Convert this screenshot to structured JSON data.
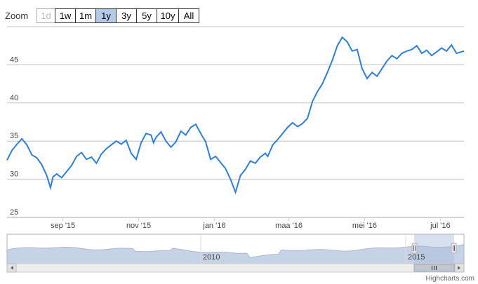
{
  "zoom": {
    "label": "Zoom",
    "buttons": [
      {
        "label": "1d",
        "state": "disabled"
      },
      {
        "label": "1w",
        "state": "normal"
      },
      {
        "label": "1m",
        "state": "normal"
      },
      {
        "label": "1y",
        "state": "active"
      },
      {
        "label": "3y",
        "state": "normal"
      },
      {
        "label": "5y",
        "state": "normal"
      },
      {
        "label": "10y",
        "state": "normal"
      },
      {
        "label": "All",
        "state": "normal"
      }
    ]
  },
  "credits": "Highcharts.com",
  "colors": {
    "line": "#2f7ed8",
    "navigator_fill": "#c6d3e6",
    "selection": "#a7bad9",
    "grid": "#c0c0c0"
  },
  "chart_data": {
    "type": "line",
    "title": "",
    "xlabel": "",
    "ylabel": "",
    "ylim": [
      25,
      50
    ],
    "yticks": [
      25,
      30,
      35,
      40,
      45
    ],
    "xticks": [
      {
        "date": "2015-09-01",
        "label": "sep '15"
      },
      {
        "date": "2015-11-01",
        "label": "nov '15"
      },
      {
        "date": "2016-01-01",
        "label": "jan '16"
      },
      {
        "date": "2016-03-01",
        "label": "maa '16"
      },
      {
        "date": "2016-05-01",
        "label": "mei '16"
      },
      {
        "date": "2016-07-01",
        "label": "jul '16"
      }
    ],
    "xrange": [
      "2015-07-18",
      "2016-07-20"
    ],
    "grid": true,
    "series": [
      {
        "x": [
          "2015-07-18",
          "2015-07-22",
          "2015-07-26",
          "2015-07-30",
          "2015-08-03",
          "2015-08-07",
          "2015-08-11",
          "2015-08-15",
          "2015-08-19",
          "2015-08-22",
          "2015-08-24",
          "2015-08-27",
          "2015-08-31",
          "2015-09-04",
          "2015-09-08",
          "2015-09-12",
          "2015-09-16",
          "2015-09-20",
          "2015-09-24",
          "2015-09-28",
          "2015-10-02",
          "2015-10-06",
          "2015-10-10",
          "2015-10-14",
          "2015-10-18",
          "2015-10-22",
          "2015-10-26",
          "2015-10-30",
          "2015-11-03",
          "2015-11-07",
          "2015-11-11",
          "2015-11-13",
          "2015-11-15",
          "2015-11-19",
          "2015-11-23",
          "2015-11-27",
          "2015-12-01",
          "2015-12-05",
          "2015-12-09",
          "2015-12-13",
          "2015-12-17",
          "2015-12-21",
          "2015-12-25",
          "2015-12-29",
          "2016-01-02",
          "2016-01-06",
          "2016-01-10",
          "2016-01-14",
          "2016-01-18",
          "2016-01-22",
          "2016-01-26",
          "2016-01-30",
          "2016-02-03",
          "2016-02-07",
          "2016-02-11",
          "2016-02-13",
          "2016-02-17",
          "2016-02-21",
          "2016-02-25",
          "2016-02-29",
          "2016-03-04",
          "2016-03-08",
          "2016-03-12",
          "2016-03-16",
          "2016-03-20",
          "2016-03-24",
          "2016-03-28",
          "2016-04-01",
          "2016-04-05",
          "2016-04-09",
          "2016-04-13",
          "2016-04-17",
          "2016-04-21",
          "2016-04-25",
          "2016-04-29",
          "2016-05-03",
          "2016-05-07",
          "2016-05-11",
          "2016-05-15",
          "2016-05-19",
          "2016-05-23",
          "2016-05-27",
          "2016-05-31",
          "2016-06-04",
          "2016-06-08",
          "2016-06-12",
          "2016-06-16",
          "2016-06-20",
          "2016-06-24",
          "2016-06-28",
          "2016-07-02",
          "2016-07-06",
          "2016-07-10",
          "2016-07-14",
          "2016-07-20"
        ],
        "values": [
          32.5,
          33.8,
          34.6,
          35.3,
          34.5,
          33.2,
          32.8,
          31.9,
          30.5,
          28.9,
          30.3,
          30.7,
          30.2,
          31.0,
          31.8,
          33.0,
          33.5,
          32.6,
          32.9,
          32.1,
          33.3,
          34.0,
          34.5,
          35.0,
          34.6,
          35.1,
          33.4,
          32.6,
          34.8,
          36.0,
          35.8,
          34.8,
          35.5,
          36.2,
          35.0,
          34.2,
          34.9,
          36.3,
          35.8,
          36.8,
          37.2,
          36.0,
          34.9,
          32.6,
          33.0,
          32.2,
          31.4,
          30.0,
          28.3,
          30.5,
          31.3,
          32.4,
          32.1,
          32.9,
          33.4,
          33.0,
          34.5,
          35.2,
          36.0,
          36.8,
          37.4,
          36.9,
          37.3,
          38.0,
          40.2,
          41.5,
          42.5,
          44.0,
          45.6,
          47.5,
          48.6,
          48.0,
          46.8,
          47.0,
          44.5,
          43.2,
          44.0,
          43.5,
          44.5,
          45.5,
          46.2,
          45.8,
          46.5,
          46.8,
          47.0,
          47.5,
          46.5,
          46.9,
          46.2,
          46.7,
          47.2,
          46.8,
          47.6,
          46.5,
          46.8
        ]
      }
    ],
    "navigator": {
      "type": "area",
      "xlabels": [
        "2010",
        "2015"
      ]
    }
  }
}
